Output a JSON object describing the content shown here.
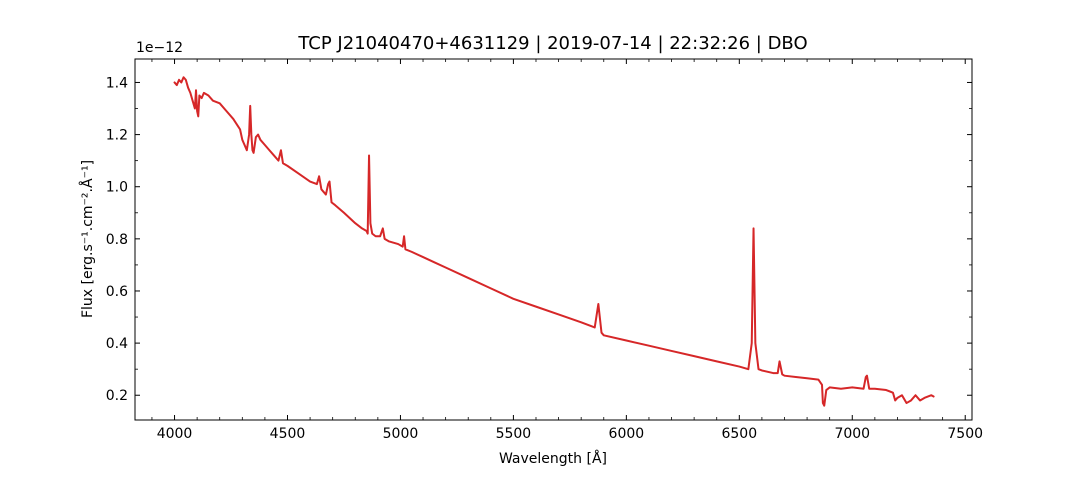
{
  "chart_data": {
    "type": "line",
    "title": "TCP J21040470+4631129 | 2019-07-14 | 22:32:26 | DBO",
    "xlabel": "Wavelength [Å]",
    "ylabel": "Flux [erg.s⁻¹.cm⁻².Å⁻¹]",
    "y_offset_label": "1e−12",
    "xlim": [
      3825,
      7530
    ],
    "ylim": [
      1.05e-13,
      1.49e-12
    ],
    "x_ticks": [
      4000,
      4500,
      5000,
      5500,
      6000,
      6500,
      7000,
      7500
    ],
    "x_tick_labels": [
      "4000",
      "4500",
      "5000",
      "5500",
      "6000",
      "6500",
      "7000",
      "7500"
    ],
    "y_ticks": [
      2e-13,
      4e-13,
      6e-13,
      8e-13,
      1e-12,
      1.2e-12,
      1.4e-12
    ],
    "y_tick_labels": [
      "0.2",
      "0.4",
      "0.6",
      "0.8",
      "1.0",
      "1.2",
      "1.4"
    ],
    "grid": false,
    "legend": "none",
    "series": [
      {
        "color": "#d62728",
        "x": [
          4000,
          4010,
          4020,
          4030,
          4040,
          4050,
          4060,
          4070,
          4080,
          4090,
          4095,
          4100,
          4105,
          4110,
          4120,
          4130,
          4150,
          4170,
          4200,
          4230,
          4260,
          4290,
          4300,
          4310,
          4320,
          4330,
          4335,
          4340,
          4345,
          4350,
          4360,
          4370,
          4380,
          4400,
          4420,
          4440,
          4460,
          4471,
          4480,
          4500,
          4550,
          4600,
          4630,
          4640,
          4650,
          4660,
          4670,
          4680,
          4686,
          4695,
          4710,
          4750,
          4800,
          4830,
          4850,
          4855,
          4861,
          4867,
          4875,
          4890,
          4910,
          4922,
          4930,
          4950,
          4990,
          5010,
          5016,
          5022,
          5050,
          5100,
          5150,
          5200,
          5300,
          5400,
          5500,
          5600,
          5700,
          5800,
          5860,
          5876,
          5890,
          5900,
          6000,
          6100,
          6200,
          6300,
          6400,
          6500,
          6540,
          6555,
          6563,
          6571,
          6585,
          6600,
          6650,
          6670,
          6678,
          6690,
          6700,
          6750,
          6800,
          6850,
          6866,
          6870,
          6876,
          6885,
          6900,
          6950,
          7000,
          7050,
          7060,
          7065,
          7075,
          7100,
          7150,
          7180,
          7190,
          7200,
          7220,
          7240,
          7260,
          7280,
          7300,
          7320,
          7350,
          7360
        ],
        "y": [
          1.4e-12,
          1.39e-12,
          1.41e-12,
          1.4e-12,
          1.42e-12,
          1.41e-12,
          1.38e-12,
          1.36e-12,
          1.33e-12,
          1.3e-12,
          1.37e-12,
          1.29e-12,
          1.27e-12,
          1.35e-12,
          1.34e-12,
          1.36e-12,
          1.35e-12,
          1.33e-12,
          1.32e-12,
          1.29e-12,
          1.26e-12,
          1.22e-12,
          1.18e-12,
          1.16e-12,
          1.14e-12,
          1.2e-12,
          1.31e-12,
          1.2e-12,
          1.14e-12,
          1.13e-12,
          1.19e-12,
          1.2e-12,
          1.18e-12,
          1.16e-12,
          1.14e-12,
          1.12e-12,
          1.1e-12,
          1.14e-12,
          1.09e-12,
          1.08e-12,
          1.05e-12,
          1.02e-12,
          1.01e-12,
          1.04e-12,
          9.9e-13,
          9.8e-13,
          9.7e-13,
          1.01e-12,
          1.02e-12,
          9.4e-13,
          9.3e-13,
          9e-13,
          8.6e-13,
          8.4e-13,
          8.3e-13,
          8.2e-13,
          1.12e-12,
          8.6e-13,
          8.2e-13,
          8.1e-13,
          8.1e-13,
          8.4e-13,
          8e-13,
          7.9e-13,
          7.8e-13,
          7.7e-13,
          8.1e-13,
          7.6e-13,
          7.5e-13,
          7.3e-13,
          7.1e-13,
          6.9e-13,
          6.5e-13,
          6.1e-13,
          5.7e-13,
          5.4e-13,
          5.1e-13,
          4.8e-13,
          4.6e-13,
          5.5e-13,
          4.4e-13,
          4.3e-13,
          4.1e-13,
          3.9e-13,
          3.7e-13,
          3.5e-13,
          3.3e-13,
          3.1e-13,
          3e-13,
          4e-13,
          8.4e-13,
          4e-13,
          3e-13,
          2.95e-13,
          2.85e-13,
          2.85e-13,
          3.3e-13,
          2.8e-13,
          2.75e-13,
          2.7e-13,
          2.65e-13,
          2.6e-13,
          2.4e-13,
          1.7e-13,
          1.6e-13,
          2.2e-13,
          2.3e-13,
          2.25e-13,
          2.3e-13,
          2.25e-13,
          2.7e-13,
          2.75e-13,
          2.25e-13,
          2.25e-13,
          2.2e-13,
          2.1e-13,
          1.8e-13,
          1.9e-13,
          2e-13,
          1.7e-13,
          1.8e-13,
          2e-13,
          1.8e-13,
          1.9e-13,
          2e-13,
          1.95e-13
        ]
      }
    ]
  }
}
